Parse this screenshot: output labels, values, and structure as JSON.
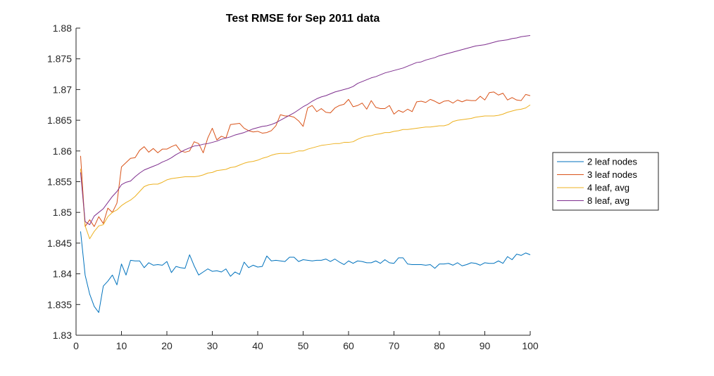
{
  "chart_data": {
    "type": "line",
    "title": "Test RMSE for Sep 2011 data",
    "xlabel": "",
    "ylabel": "",
    "xlim": [
      0,
      100
    ],
    "ylim": [
      1.83,
      1.88
    ],
    "x_ticks": [
      0,
      10,
      20,
      30,
      40,
      50,
      60,
      70,
      80,
      90,
      100
    ],
    "x_tick_labels": [
      "0",
      "10",
      "20",
      "30",
      "40",
      "50",
      "60",
      "70",
      "80",
      "90",
      "100"
    ],
    "y_ticks": [
      1.83,
      1.835,
      1.84,
      1.845,
      1.85,
      1.855,
      1.86,
      1.865,
      1.87,
      1.875,
      1.88
    ],
    "y_tick_labels": [
      "1.83",
      "1.835",
      "1.84",
      "1.845",
      "1.85",
      "1.855",
      "1.86",
      "1.865",
      "1.87",
      "1.875",
      "1.88"
    ],
    "grid": false,
    "legend_position": "outside-right",
    "x": [
      1,
      2,
      3,
      4,
      5,
      6,
      7,
      8,
      9,
      10,
      11,
      12,
      13,
      14,
      15,
      16,
      17,
      18,
      19,
      20,
      21,
      22,
      23,
      24,
      25,
      26,
      27,
      28,
      29,
      30,
      31,
      32,
      33,
      34,
      35,
      36,
      37,
      38,
      39,
      40,
      41,
      42,
      43,
      44,
      45,
      46,
      47,
      48,
      49,
      50,
      51,
      52,
      53,
      54,
      55,
      56,
      57,
      58,
      59,
      60,
      61,
      62,
      63,
      64,
      65,
      66,
      67,
      68,
      69,
      70,
      71,
      72,
      73,
      74,
      75,
      76,
      77,
      78,
      79,
      80,
      81,
      82,
      83,
      84,
      85,
      86,
      87,
      88,
      89,
      90,
      91,
      92,
      93,
      94,
      95,
      96,
      97,
      98,
      99,
      100
    ],
    "series": [
      {
        "name": "2 leaf nodes",
        "color": "#0072BD",
        "values": [
          1.8469,
          1.8398,
          1.8367,
          1.8347,
          1.8337,
          1.838,
          1.8388,
          1.8398,
          1.8382,
          1.8416,
          1.8398,
          1.8422,
          1.8421,
          1.8421,
          1.841,
          1.8418,
          1.8414,
          1.8415,
          1.8414,
          1.842,
          1.8402,
          1.8412,
          1.841,
          1.8409,
          1.8431,
          1.8413,
          1.8398,
          1.8403,
          1.8408,
          1.8404,
          1.8405,
          1.8403,
          1.8408,
          1.8396,
          1.8403,
          1.8399,
          1.8419,
          1.841,
          1.8414,
          1.8411,
          1.8412,
          1.8429,
          1.8421,
          1.8422,
          1.8421,
          1.842,
          1.8427,
          1.8427,
          1.842,
          1.8423,
          1.8422,
          1.8421,
          1.8422,
          1.8422,
          1.8424,
          1.842,
          1.8424,
          1.8419,
          1.8415,
          1.8421,
          1.8417,
          1.8421,
          1.842,
          1.8418,
          1.8418,
          1.8421,
          1.8417,
          1.8423,
          1.8418,
          1.8417,
          1.8426,
          1.8426,
          1.8416,
          1.8415,
          1.8415,
          1.8415,
          1.8414,
          1.8415,
          1.8409,
          1.8416,
          1.8416,
          1.8417,
          1.8414,
          1.8418,
          1.8413,
          1.8415,
          1.8418,
          1.8417,
          1.8414,
          1.8418,
          1.8417,
          1.8417,
          1.8421,
          1.8417,
          1.8428,
          1.8423,
          1.8432,
          1.843,
          1.8434,
          1.8431
        ]
      },
      {
        "name": "3 leaf nodes",
        "color": "#D95319",
        "values": [
          1.8592,
          1.8477,
          1.8488,
          1.8477,
          1.8493,
          1.8482,
          1.8507,
          1.85,
          1.8515,
          1.8574,
          1.8581,
          1.8588,
          1.8589,
          1.8601,
          1.8607,
          1.8598,
          1.8604,
          1.8597,
          1.8603,
          1.8603,
          1.8607,
          1.861,
          1.86,
          1.8598,
          1.86,
          1.8615,
          1.8612,
          1.8597,
          1.8621,
          1.8637,
          1.8618,
          1.8624,
          1.8621,
          1.8643,
          1.8644,
          1.8645,
          1.8637,
          1.8633,
          1.8631,
          1.8632,
          1.8629,
          1.863,
          1.8633,
          1.8641,
          1.8659,
          1.8657,
          1.8657,
          1.8655,
          1.8649,
          1.864,
          1.867,
          1.8674,
          1.8664,
          1.8669,
          1.8663,
          1.8662,
          1.867,
          1.8674,
          1.8676,
          1.8684,
          1.8672,
          1.8674,
          1.8678,
          1.8668,
          1.8682,
          1.8671,
          1.8669,
          1.8669,
          1.8674,
          1.866,
          1.8666,
          1.8663,
          1.8668,
          1.8664,
          1.868,
          1.8681,
          1.8679,
          1.8684,
          1.8681,
          1.8677,
          1.8681,
          1.8682,
          1.8678,
          1.8683,
          1.868,
          1.8683,
          1.8682,
          1.8682,
          1.8689,
          1.8683,
          1.8695,
          1.8696,
          1.8691,
          1.8694,
          1.8683,
          1.8687,
          1.8683,
          1.8682,
          1.8692,
          1.869
        ]
      },
      {
        "name": "4 leaf, avg",
        "color": "#EDB120",
        "values": [
          1.8571,
          1.8478,
          1.8457,
          1.8469,
          1.8478,
          1.848,
          1.8493,
          1.85,
          1.8504,
          1.8511,
          1.8516,
          1.852,
          1.8526,
          1.8534,
          1.8542,
          1.8545,
          1.8546,
          1.8546,
          1.8549,
          1.8553,
          1.8555,
          1.8556,
          1.8557,
          1.8558,
          1.8558,
          1.8558,
          1.8559,
          1.8561,
          1.8564,
          1.8565,
          1.8568,
          1.8569,
          1.857,
          1.8573,
          1.8574,
          1.8577,
          1.858,
          1.8582,
          1.8583,
          1.8585,
          1.8588,
          1.859,
          1.8593,
          1.8595,
          1.8596,
          1.8596,
          1.8596,
          1.8598,
          1.86,
          1.86,
          1.8603,
          1.8605,
          1.8607,
          1.8609,
          1.861,
          1.8611,
          1.8612,
          1.8612,
          1.8614,
          1.8614,
          1.8615,
          1.8619,
          1.8622,
          1.8624,
          1.8625,
          1.8627,
          1.8628,
          1.863,
          1.863,
          1.8632,
          1.8633,
          1.8635,
          1.8635,
          1.8636,
          1.8637,
          1.8638,
          1.8639,
          1.8639,
          1.864,
          1.8641,
          1.8641,
          1.8643,
          1.8648,
          1.865,
          1.8651,
          1.8652,
          1.8653,
          1.8655,
          1.8656,
          1.8657,
          1.8657,
          1.8657,
          1.8658,
          1.866,
          1.8663,
          1.8665,
          1.8667,
          1.8668,
          1.867,
          1.8675
        ]
      },
      {
        "name": "8 leaf, avg",
        "color": "#7E2F8E",
        "values": [
          1.8565,
          1.8485,
          1.848,
          1.8494,
          1.85,
          1.8506,
          1.8516,
          1.8526,
          1.8534,
          1.8545,
          1.8549,
          1.8551,
          1.8558,
          1.8564,
          1.8569,
          1.8572,
          1.8575,
          1.8578,
          1.8582,
          1.8585,
          1.8589,
          1.8594,
          1.8598,
          1.8602,
          1.8605,
          1.8608,
          1.8609,
          1.8611,
          1.8612,
          1.8614,
          1.8616,
          1.8619,
          1.8621,
          1.8623,
          1.8626,
          1.8628,
          1.863,
          1.8633,
          1.8636,
          1.8638,
          1.864,
          1.8641,
          1.8643,
          1.8646,
          1.865,
          1.8654,
          1.8658,
          1.8662,
          1.8667,
          1.8672,
          1.8676,
          1.8681,
          1.8685,
          1.8688,
          1.869,
          1.8693,
          1.8696,
          1.8698,
          1.87,
          1.8702,
          1.8705,
          1.871,
          1.8713,
          1.8716,
          1.8719,
          1.8721,
          1.8724,
          1.8727,
          1.8729,
          1.8731,
          1.8733,
          1.8735,
          1.8738,
          1.8741,
          1.8744,
          1.8745,
          1.8748,
          1.875,
          1.8752,
          1.8755,
          1.8757,
          1.8759,
          1.8761,
          1.8763,
          1.8765,
          1.8767,
          1.8769,
          1.8771,
          1.8772,
          1.8773,
          1.8775,
          1.8777,
          1.8779,
          1.878,
          1.8781,
          1.8783,
          1.8784,
          1.8786,
          1.8787,
          1.8788
        ]
      }
    ]
  }
}
